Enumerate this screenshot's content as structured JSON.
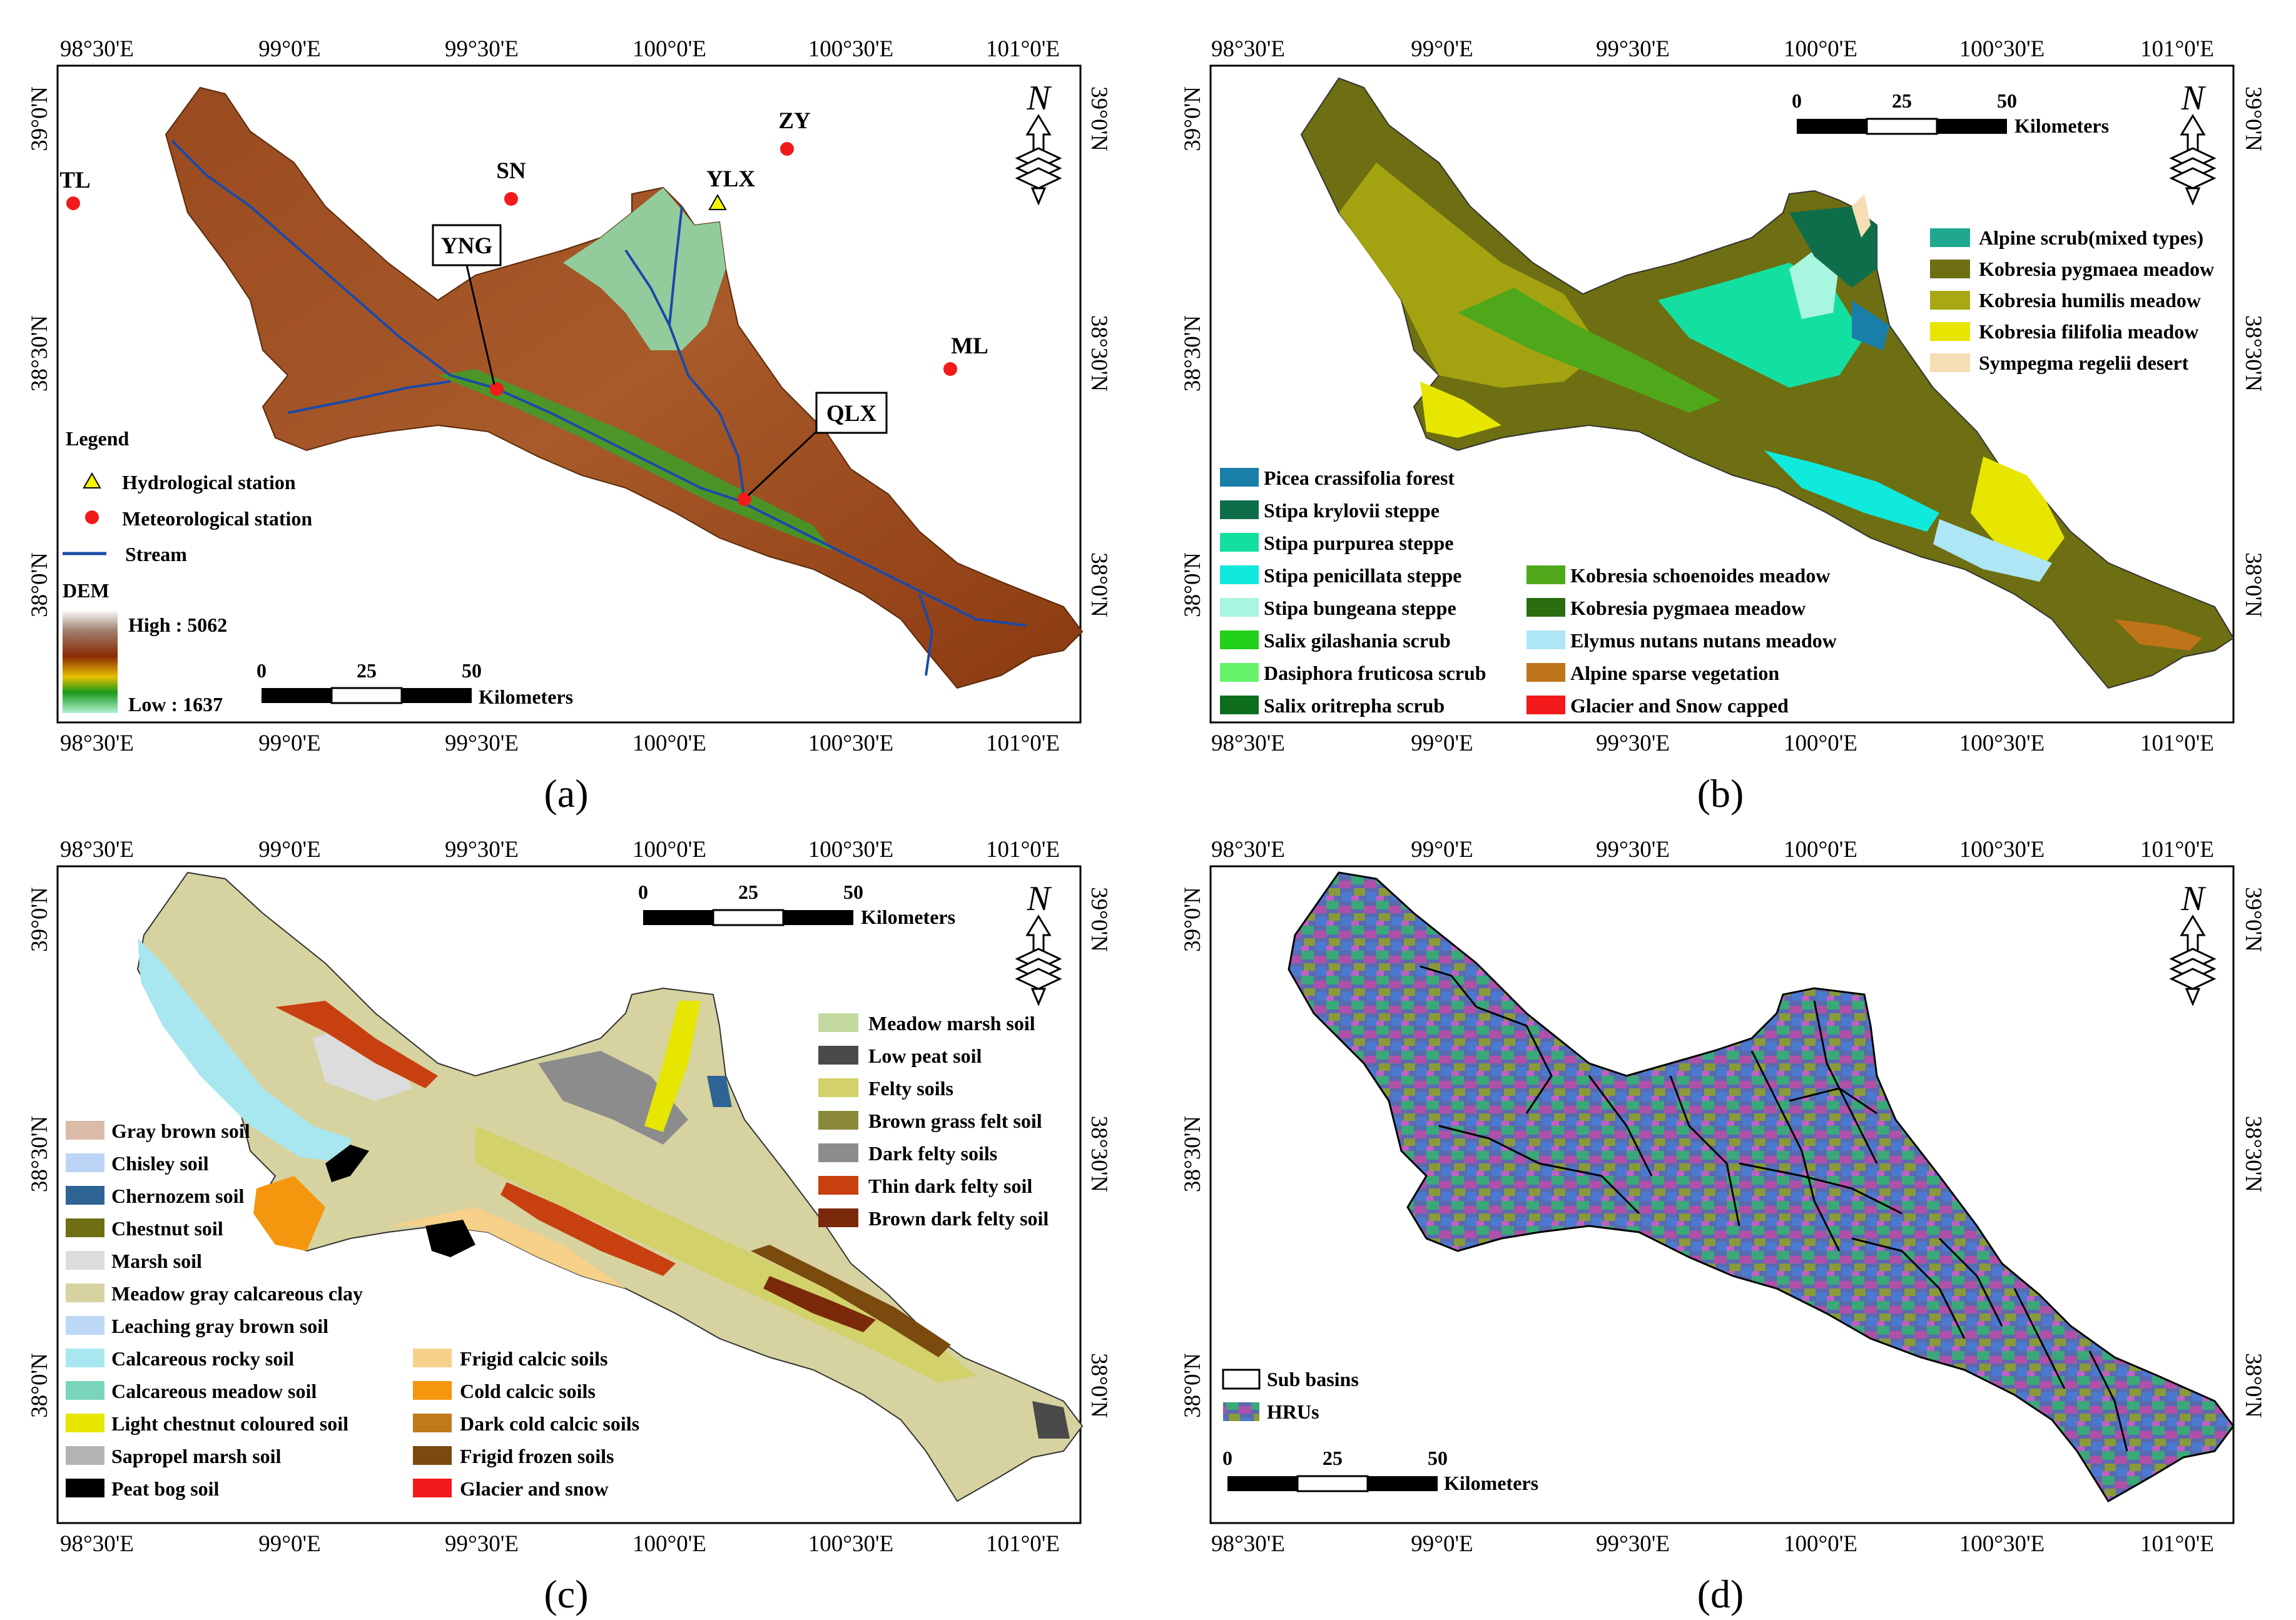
{
  "panels": {
    "a": {
      "label": "(a)",
      "x_ticks": [
        "98°30'E",
        "99°0'E",
        "99°30'E",
        "100°0'E",
        "100°30'E",
        "101°0'E"
      ],
      "y_ticks": [
        "39°0'N",
        "38°30'N",
        "38°0'N"
      ],
      "stations": {
        "tl": "TL",
        "sn": "SN",
        "zy": "ZY",
        "ylx": "YLX",
        "yng": "YNG",
        "ml": "ML",
        "qlx": "QLX"
      },
      "legend": {
        "title": "Legend",
        "hydro": "Hydrological station",
        "meteo": "Meteorological station",
        "stream": "Stream",
        "dem_title": "DEM",
        "high": "High : 5062",
        "low": "Low : 1637"
      },
      "scale": {
        "t0": "0",
        "t1": "25",
        "t2": "50",
        "unit": "Kilometers"
      }
    },
    "b": {
      "label": "(b)",
      "x_ticks": [
        "98°30'E",
        "99°0'E",
        "99°30'E",
        "100°0'E",
        "100°30'E",
        "101°0'E"
      ],
      "y_ticks": [
        "39°0'N",
        "38°30'N",
        "38°0'N"
      ],
      "scale": {
        "t0": "0",
        "t1": "25",
        "t2": "50",
        "unit": "Kilometers"
      },
      "legend_top": [
        {
          "label": "Alpine scrub(mixed types)",
          "color": "#1fa88f"
        },
        {
          "label": "Kobresia pygmaea meadow",
          "color": "#6e6e12"
        },
        {
          "label": "Kobresia humilis meadow",
          "color": "#a8a812"
        },
        {
          "label": "Kobresia filifolia meadow",
          "color": "#e6e600"
        },
        {
          "label": "Sympegma regelii desert",
          "color": "#f5deb3"
        }
      ],
      "legend_left": [
        {
          "label": "Picea crassifolia forest",
          "color": "#1a7fa8"
        },
        {
          "label": "Stipa krylovii steppe",
          "color": "#0f6e4a"
        },
        {
          "label": "Stipa purpurea steppe",
          "color": "#13e0a0"
        },
        {
          "label": "Stipa penicillata steppe",
          "color": "#10eadc"
        },
        {
          "label": "Stipa bungeana steppe",
          "color": "#a8f5e0"
        },
        {
          "label": "Salix gilashania scrub",
          "color": "#22d11a"
        },
        {
          "label": "Dasiphora fruticosa scrub",
          "color": "#66f26a"
        },
        {
          "label": "Salix oritrepha scrub",
          "color": "#0f6e1e"
        }
      ],
      "legend_right": [
        {
          "label": "Kobresia schoenoides meadow",
          "color": "#4ea81a"
        },
        {
          "label": "Kobresia pygmaea meadow",
          "color": "#2c6e0f"
        },
        {
          "label": "Elymus nutans nutans meadow",
          "color": "#aee6f5"
        },
        {
          "label": "Alpine sparse vegetation",
          "color": "#c0741a"
        },
        {
          "label": "Glacier and Snow capped",
          "color": "#f21a1a"
        }
      ]
    },
    "c": {
      "label": "(c)",
      "x_ticks": [
        "98°30'E",
        "99°0'E",
        "99°30'E",
        "100°0'E",
        "100°30'E",
        "101°0'E"
      ],
      "y_ticks": [
        "39°0'N",
        "38°30'N",
        "38°0'N"
      ],
      "scale": {
        "t0": "0",
        "t1": "25",
        "t2": "50",
        "unit": "Kilometers"
      },
      "legend_right": [
        {
          "label": "Meadow marsh soil",
          "color": "#c3d9a0"
        },
        {
          "label": "Low peat soil",
          "color": "#4a4a4a"
        },
        {
          "label": "Felty soils",
          "color": "#d2d16a"
        },
        {
          "label": "Brown grass felt soil",
          "color": "#8a8a3a"
        },
        {
          "label": "Dark felty soils",
          "color": "#8c8c8c"
        },
        {
          "label": "Thin dark felty soil",
          "color": "#c8400f"
        },
        {
          "label": "Brown dark felty soil",
          "color": "#7a2a0a"
        }
      ],
      "legend_left": [
        {
          "label": "Gray brown soil",
          "color": "#d9bba8"
        },
        {
          "label": "Chisley soil",
          "color": "#bcd4f5"
        },
        {
          "label": "Chernozem soil",
          "color": "#2e6494"
        },
        {
          "label": "Chestnut soil",
          "color": "#6e6e12"
        },
        {
          "label": "Marsh soil",
          "color": "#dcdcdc"
        },
        {
          "label": "Meadow gray calcareous clay",
          "color": "#d6d3a0"
        },
        {
          "label": "Leaching gray brown soil",
          "color": "#bcd8f5"
        },
        {
          "label": "Calcareous rocky soil",
          "color": "#a8e6f0"
        },
        {
          "label": "Calcareous meadow soil",
          "color": "#7ad4bc"
        },
        {
          "label": "Light chestnut coloured soil",
          "color": "#e6e600"
        },
        {
          "label": "Sapropel marsh soil",
          "color": "#b4b4b4"
        },
        {
          "label": "Peat bog soil",
          "color": "#000000"
        }
      ],
      "legend_mid": [
        {
          "label": "Frigid calcic soils",
          "color": "#f7d08a"
        },
        {
          "label": "Cold calcic soils",
          "color": "#f5960f"
        },
        {
          "label": "Dark cold calcic soils",
          "color": "#c07a1a"
        },
        {
          "label": "Frigid frozen soils",
          "color": "#7a4a0f"
        },
        {
          "label": "Glacier and snow",
          "color": "#f21a1a"
        }
      ]
    },
    "d": {
      "label": "(d)",
      "x_ticks": [
        "98°30'E",
        "99°0'E",
        "99°30'E",
        "100°0'E",
        "100°30'E",
        "101°0'E"
      ],
      "y_ticks": [
        "39°0'N",
        "38°30'N",
        "38°0'N"
      ],
      "scale": {
        "t0": "0",
        "t1": "25",
        "t2": "50",
        "unit": "Kilometers"
      },
      "legend": {
        "sub": "Sub basins",
        "hru": "HRUs"
      }
    }
  }
}
